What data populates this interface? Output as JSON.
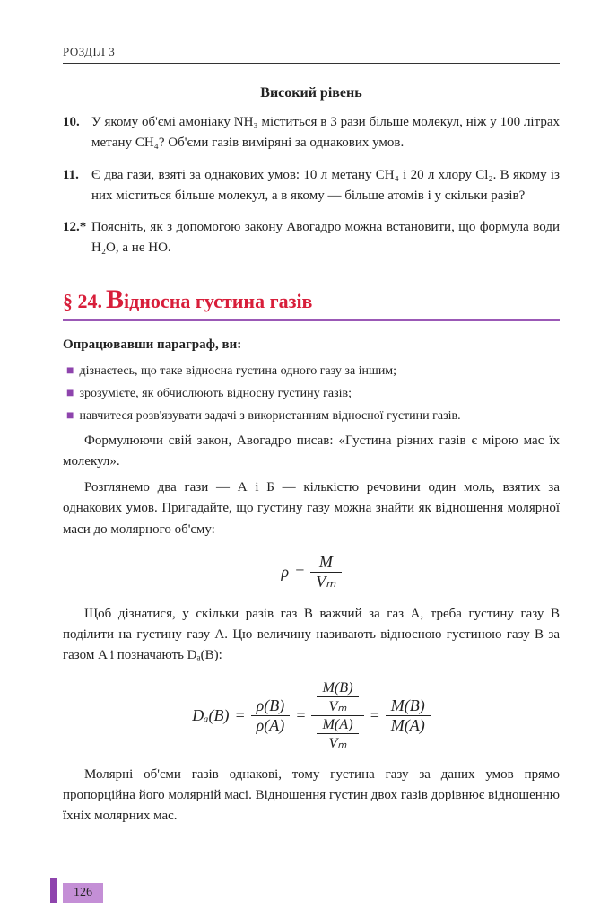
{
  "header": "РОЗДІЛ 3",
  "level_title": "Високий рівень",
  "problems": [
    {
      "num": "10.",
      "text": "У якому об'ємі амоніаку NH₃ міститься в 3 рази більше молекул, ніж у 100 літрах метану CH₄? Об'єми газів виміряні за однакових умов."
    },
    {
      "num": "11.",
      "text": "Є два гази, взяті за однакових умов: 10 л метану CH₄ і 20 л хлору Cl₂. В якому із них міститься більше молекул, а в якому — більше атомів і у скільки разів?"
    },
    {
      "num": "12.*",
      "text": "Поясніть, як з допомогою закону Авогадро можна встановити, що формула води H₂O, а не HO."
    }
  ],
  "section": {
    "para": "§ 24.",
    "big": "В",
    "rest": "ідносна густина газів"
  },
  "intro": "Опрацювавши параграф, ви:",
  "bullets": [
    "дізнаєтесь, що таке відносна густина одного газу за іншим;",
    "зрозумієте, як обчислюють відносну густину газів;",
    "навчитеся розв'язувати задачі з використанням відносної густини газів."
  ],
  "p1": "Формулюючи свій закон, Авогадро писав: «Густина різних газів є мірою мас їх молекул».",
  "p2": "Розглянемо два гази — А і Б — кількістю речовини один моль, взятих за однакових умов. Пригадайте, що густину газу можна знайти як відношення молярної маси до молярного об'єму:",
  "formula1": {
    "lhs": "ρ",
    "num": "M",
    "den": "Vₘ"
  },
  "p3": "Щоб дізнатися, у скільки разів газ B важчий за газ A, треба густину газу B поділити на густину газу A. Цю величину називають відносною густиною газу B за газом A і позначають Dₐ(B):",
  "formula2": {
    "lhs": "Dₐ(B)",
    "f1n": "ρ(B)",
    "f1d": "ρ(A)",
    "f2nn": "M(B)",
    "f2nd": "Vₘ",
    "f2dn": "M(A)",
    "f2dd": "Vₘ",
    "f3n": "M(B)",
    "f3d": "M(A)"
  },
  "p4": "Молярні об'єми газів однакові, тому густина газу за даних умов прямо пропорційна його молярній масі. Відношення густин двох газів дорівнює відношенню їхніх молярних мас.",
  "page_number": "126"
}
